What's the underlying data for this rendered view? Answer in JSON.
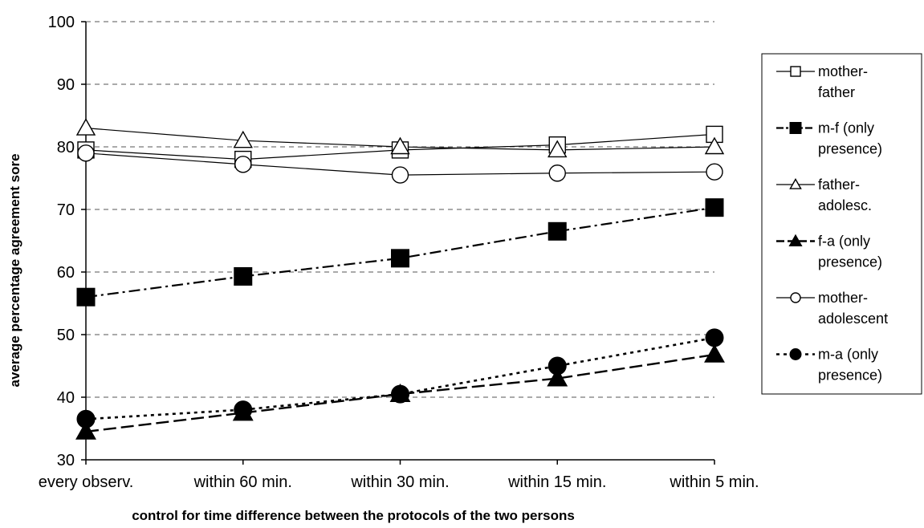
{
  "chart_data": {
    "type": "line",
    "title": "",
    "xlabel": "control for time difference between the protocols of the two persons",
    "ylabel": "average percentage agreement sore",
    "categories": [
      "every observ.",
      "within 60 min.",
      "within 30 min.",
      "within 15 min.",
      "within 5 min."
    ],
    "ylim": [
      30,
      100
    ],
    "yticks": [
      30,
      40,
      50,
      60,
      70,
      80,
      90,
      100
    ],
    "grid": "horizontal dashed",
    "legend_position": "right",
    "series": [
      {
        "name_lines": [
          "mother-",
          "father"
        ],
        "values": [
          79.5,
          78,
          79.5,
          80.3,
          82
        ],
        "marker": "square-open",
        "line": "solid-thin",
        "color": "#000000"
      },
      {
        "name_lines": [
          "m-f (only",
          "presence)"
        ],
        "values": [
          56,
          59.3,
          62.2,
          66.5,
          70.3
        ],
        "marker": "square-filled",
        "line": "dash-dot",
        "color": "#000000"
      },
      {
        "name_lines": [
          "father-",
          "adolesc."
        ],
        "values": [
          83,
          81,
          80,
          79.5,
          80
        ],
        "marker": "triangle-open",
        "line": "solid-thin",
        "color": "#000000"
      },
      {
        "name_lines": [
          "f-a (only",
          "presence)"
        ],
        "values": [
          34.5,
          37.5,
          40.5,
          43,
          46.8
        ],
        "marker": "triangle-filled",
        "line": "long-dash",
        "color": "#000000"
      },
      {
        "name_lines": [
          "mother-",
          "adolescent"
        ],
        "values": [
          79,
          77.2,
          75.5,
          75.8,
          76
        ],
        "marker": "circle-open",
        "line": "solid-thin",
        "color": "#000000"
      },
      {
        "name_lines": [
          "m-a (only",
          "presence)"
        ],
        "values": [
          36.5,
          38,
          40.5,
          45,
          49.5
        ],
        "marker": "circle-filled",
        "line": "dotted",
        "color": "#000000"
      }
    ]
  }
}
